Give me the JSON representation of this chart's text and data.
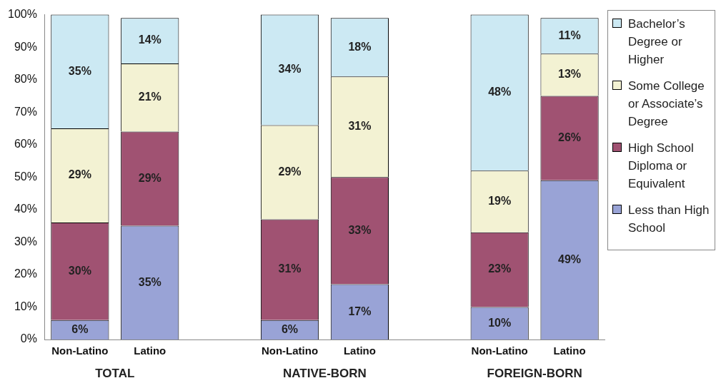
{
  "chart_data": {
    "type": "bar",
    "stacked": true,
    "categories": [
      "Non-Latino",
      "Latino",
      null,
      "Non-Latino",
      "Latino",
      null,
      "Non-Latino",
      "Latino"
    ],
    "series": [
      {
        "name": "Less than High School",
        "color": "#99a3d6",
        "values": [
          6,
          35,
          null,
          6,
          17,
          null,
          10,
          49
        ],
        "value_labels": [
          "6%",
          "35%",
          null,
          "6%",
          "17%",
          null,
          "10%",
          "49%"
        ]
      },
      {
        "name": "High School Diploma or Equivalent",
        "color": "#a05272",
        "values": [
          30,
          29,
          null,
          31,
          33,
          null,
          23,
          26
        ],
        "value_labels": [
          "30%",
          "29%",
          null,
          "31%",
          "33%",
          null,
          "23%",
          "26%"
        ]
      },
      {
        "name": "Some College or Associate’s Degree",
        "color": "#f3f2d3",
        "values": [
          29,
          21,
          null,
          29,
          31,
          null,
          19,
          13
        ],
        "value_labels": [
          "29%",
          "21%",
          null,
          "29%",
          "31%",
          null,
          "19%",
          "13%"
        ]
      },
      {
        "name": "Bachelor’s Degree or Higher",
        "color": "#cce9f3",
        "values": [
          35,
          14,
          null,
          34,
          18,
          null,
          48,
          11
        ],
        "value_labels": [
          "35%",
          "14%",
          null,
          "34%",
          "18%",
          null,
          "48%",
          "11%"
        ]
      }
    ],
    "ylim": [
      0,
      100
    ],
    "yticks": [
      {
        "value": 0,
        "label": "0%"
      },
      {
        "value": 10,
        "label": "10%"
      },
      {
        "value": 20,
        "label": "20%"
      },
      {
        "value": 30,
        "label": "30%"
      },
      {
        "value": 40,
        "label": "40%"
      },
      {
        "value": 50,
        "label": "50%"
      },
      {
        "value": 60,
        "label": "60%"
      },
      {
        "value": 70,
        "label": "70%"
      },
      {
        "value": 80,
        "label": "80%"
      },
      {
        "value": 90,
        "label": "90%"
      },
      {
        "value": 100,
        "label": "100%"
      }
    ],
    "annotations": [
      "TOTAL",
      "NATIVE-BORN",
      "FOREIGN-BORN"
    ],
    "grid": false,
    "legend": "right"
  }
}
